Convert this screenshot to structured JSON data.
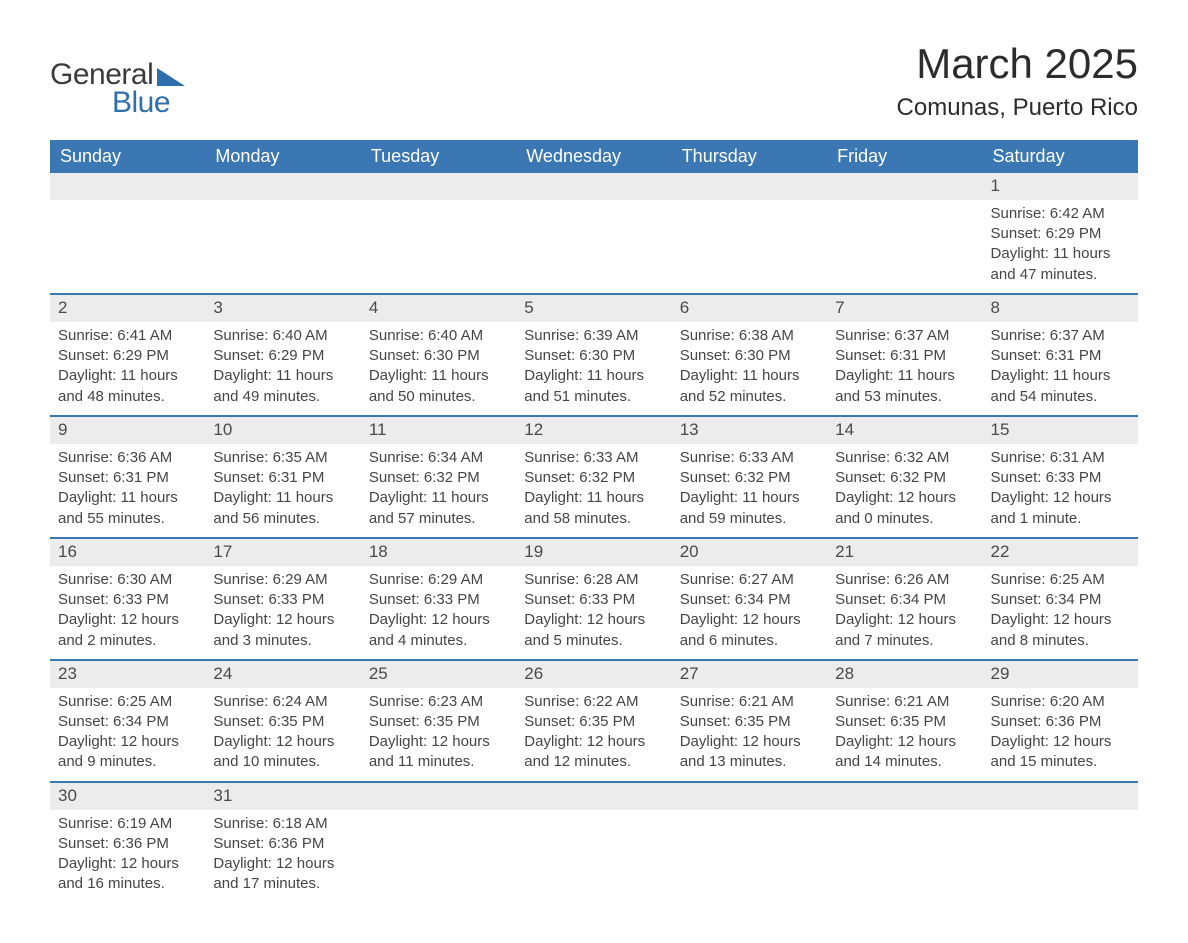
{
  "logo": {
    "text_general": "General",
    "text_blue": "Blue",
    "brand_color": "#2f6fae"
  },
  "header": {
    "title": "March 2025",
    "location": "Comunas, Puerto Rico"
  },
  "calendar": {
    "header_bg": "#3a77b3",
    "header_fg": "#ffffff",
    "row_border_color": "#3a77b3",
    "daynum_bg": "#ececec",
    "text_color": "#454545",
    "font_size_body": 15,
    "font_size_header": 18,
    "weekdays": [
      "Sunday",
      "Monday",
      "Tuesday",
      "Wednesday",
      "Thursday",
      "Friday",
      "Saturday"
    ],
    "weeks": [
      [
        null,
        null,
        null,
        null,
        null,
        null,
        {
          "day": "1",
          "sunrise": "Sunrise: 6:42 AM",
          "sunset": "Sunset: 6:29 PM",
          "daylight": "Daylight: 11 hours and 47 minutes."
        }
      ],
      [
        {
          "day": "2",
          "sunrise": "Sunrise: 6:41 AM",
          "sunset": "Sunset: 6:29 PM",
          "daylight": "Daylight: 11 hours and 48 minutes."
        },
        {
          "day": "3",
          "sunrise": "Sunrise: 6:40 AM",
          "sunset": "Sunset: 6:29 PM",
          "daylight": "Daylight: 11 hours and 49 minutes."
        },
        {
          "day": "4",
          "sunrise": "Sunrise: 6:40 AM",
          "sunset": "Sunset: 6:30 PM",
          "daylight": "Daylight: 11 hours and 50 minutes."
        },
        {
          "day": "5",
          "sunrise": "Sunrise: 6:39 AM",
          "sunset": "Sunset: 6:30 PM",
          "daylight": "Daylight: 11 hours and 51 minutes."
        },
        {
          "day": "6",
          "sunrise": "Sunrise: 6:38 AM",
          "sunset": "Sunset: 6:30 PM",
          "daylight": "Daylight: 11 hours and 52 minutes."
        },
        {
          "day": "7",
          "sunrise": "Sunrise: 6:37 AM",
          "sunset": "Sunset: 6:31 PM",
          "daylight": "Daylight: 11 hours and 53 minutes."
        },
        {
          "day": "8",
          "sunrise": "Sunrise: 6:37 AM",
          "sunset": "Sunset: 6:31 PM",
          "daylight": "Daylight: 11 hours and 54 minutes."
        }
      ],
      [
        {
          "day": "9",
          "sunrise": "Sunrise: 6:36 AM",
          "sunset": "Sunset: 6:31 PM",
          "daylight": "Daylight: 11 hours and 55 minutes."
        },
        {
          "day": "10",
          "sunrise": "Sunrise: 6:35 AM",
          "sunset": "Sunset: 6:31 PM",
          "daylight": "Daylight: 11 hours and 56 minutes."
        },
        {
          "day": "11",
          "sunrise": "Sunrise: 6:34 AM",
          "sunset": "Sunset: 6:32 PM",
          "daylight": "Daylight: 11 hours and 57 minutes."
        },
        {
          "day": "12",
          "sunrise": "Sunrise: 6:33 AM",
          "sunset": "Sunset: 6:32 PM",
          "daylight": "Daylight: 11 hours and 58 minutes."
        },
        {
          "day": "13",
          "sunrise": "Sunrise: 6:33 AM",
          "sunset": "Sunset: 6:32 PM",
          "daylight": "Daylight: 11 hours and 59 minutes."
        },
        {
          "day": "14",
          "sunrise": "Sunrise: 6:32 AM",
          "sunset": "Sunset: 6:32 PM",
          "daylight": "Daylight: 12 hours and 0 minutes."
        },
        {
          "day": "15",
          "sunrise": "Sunrise: 6:31 AM",
          "sunset": "Sunset: 6:33 PM",
          "daylight": "Daylight: 12 hours and 1 minute."
        }
      ],
      [
        {
          "day": "16",
          "sunrise": "Sunrise: 6:30 AM",
          "sunset": "Sunset: 6:33 PM",
          "daylight": "Daylight: 12 hours and 2 minutes."
        },
        {
          "day": "17",
          "sunrise": "Sunrise: 6:29 AM",
          "sunset": "Sunset: 6:33 PM",
          "daylight": "Daylight: 12 hours and 3 minutes."
        },
        {
          "day": "18",
          "sunrise": "Sunrise: 6:29 AM",
          "sunset": "Sunset: 6:33 PM",
          "daylight": "Daylight: 12 hours and 4 minutes."
        },
        {
          "day": "19",
          "sunrise": "Sunrise: 6:28 AM",
          "sunset": "Sunset: 6:33 PM",
          "daylight": "Daylight: 12 hours and 5 minutes."
        },
        {
          "day": "20",
          "sunrise": "Sunrise: 6:27 AM",
          "sunset": "Sunset: 6:34 PM",
          "daylight": "Daylight: 12 hours and 6 minutes."
        },
        {
          "day": "21",
          "sunrise": "Sunrise: 6:26 AM",
          "sunset": "Sunset: 6:34 PM",
          "daylight": "Daylight: 12 hours and 7 minutes."
        },
        {
          "day": "22",
          "sunrise": "Sunrise: 6:25 AM",
          "sunset": "Sunset: 6:34 PM",
          "daylight": "Daylight: 12 hours and 8 minutes."
        }
      ],
      [
        {
          "day": "23",
          "sunrise": "Sunrise: 6:25 AM",
          "sunset": "Sunset: 6:34 PM",
          "daylight": "Daylight: 12 hours and 9 minutes."
        },
        {
          "day": "24",
          "sunrise": "Sunrise: 6:24 AM",
          "sunset": "Sunset: 6:35 PM",
          "daylight": "Daylight: 12 hours and 10 minutes."
        },
        {
          "day": "25",
          "sunrise": "Sunrise: 6:23 AM",
          "sunset": "Sunset: 6:35 PM",
          "daylight": "Daylight: 12 hours and 11 minutes."
        },
        {
          "day": "26",
          "sunrise": "Sunrise: 6:22 AM",
          "sunset": "Sunset: 6:35 PM",
          "daylight": "Daylight: 12 hours and 12 minutes."
        },
        {
          "day": "27",
          "sunrise": "Sunrise: 6:21 AM",
          "sunset": "Sunset: 6:35 PM",
          "daylight": "Daylight: 12 hours and 13 minutes."
        },
        {
          "day": "28",
          "sunrise": "Sunrise: 6:21 AM",
          "sunset": "Sunset: 6:35 PM",
          "daylight": "Daylight: 12 hours and 14 minutes."
        },
        {
          "day": "29",
          "sunrise": "Sunrise: 6:20 AM",
          "sunset": "Sunset: 6:36 PM",
          "daylight": "Daylight: 12 hours and 15 minutes."
        }
      ],
      [
        {
          "day": "30",
          "sunrise": "Sunrise: 6:19 AM",
          "sunset": "Sunset: 6:36 PM",
          "daylight": "Daylight: 12 hours and 16 minutes."
        },
        {
          "day": "31",
          "sunrise": "Sunrise: 6:18 AM",
          "sunset": "Sunset: 6:36 PM",
          "daylight": "Daylight: 12 hours and 17 minutes."
        },
        null,
        null,
        null,
        null,
        null
      ]
    ]
  }
}
